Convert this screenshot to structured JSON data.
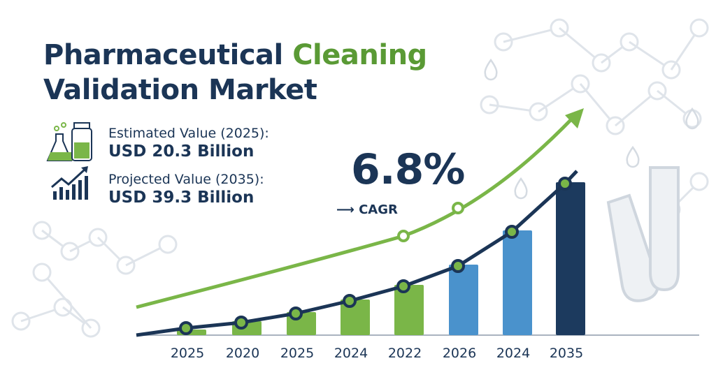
{
  "title": {
    "part1": "Pharmaceutical",
    "part2": "Cleaning",
    "part3": "Validation Market"
  },
  "stats": [
    {
      "label": "Estimated Value (2025):",
      "value": "USD 20.3 Billion",
      "icon": "flask-and-jar-icon"
    },
    {
      "label": "Projected Value (2035):",
      "value": "USD 39.3 Billion",
      "icon": "bar-chart-growth-icon"
    }
  ],
  "cagr": {
    "value": "6.8%",
    "label": "CAGR",
    "arrow": "⟶"
  },
  "colors": {
    "navy": "#1b3556",
    "green": "#7ab648",
    "blue": "#4a92cc",
    "dark_bar": "#1c3a5e"
  },
  "chart_data": {
    "type": "bar",
    "categories": [
      "2025",
      "2020",
      "2025",
      "2024",
      "2022",
      "2026",
      "2024",
      "2035"
    ],
    "values": [
      8,
      20,
      33,
      51,
      72,
      101,
      150,
      219
    ],
    "bar_colors": [
      "#7ab648",
      "#7ab648",
      "#7ab648",
      "#7ab648",
      "#7ab648",
      "#4a92cc",
      "#4a92cc",
      "#1c3a5e"
    ],
    "overlay_line": "dark trend line through bar tops with markers",
    "green_trend_arrow": "upward curved arrow",
    "ylim": [
      0,
      230
    ],
    "grid": false,
    "title": "",
    "xlabel": "",
    "ylabel": ""
  }
}
